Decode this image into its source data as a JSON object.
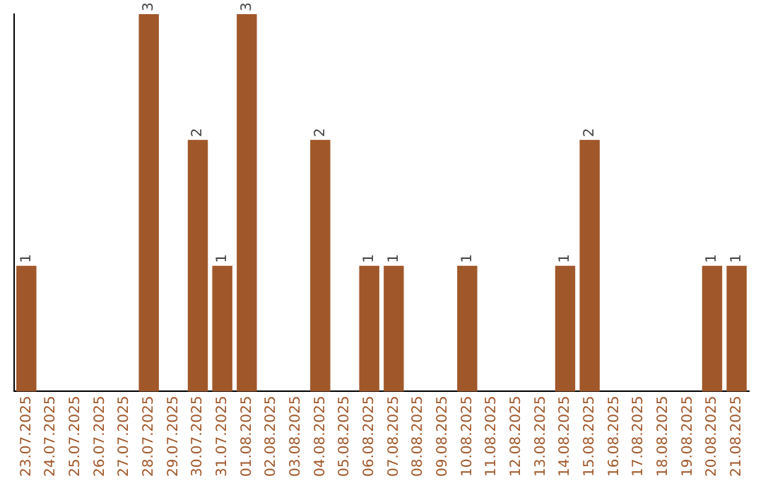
{
  "chart_data": {
    "type": "bar",
    "categories": [
      "23.07.2025",
      "24.07.2025",
      "25.07.2025",
      "26.07.2025",
      "27.07.2025",
      "28.07.2025",
      "29.07.2025",
      "30.07.2025",
      "31.07.2025",
      "01.08.2025",
      "02.08.2025",
      "03.08.2025",
      "04.08.2025",
      "05.08.2025",
      "06.08.2025",
      "07.08.2025",
      "08.08.2025",
      "09.08.2025",
      "10.08.2025",
      "11.08.2025",
      "12.08.2025",
      "13.08.2025",
      "14.08.2025",
      "15.08.2025",
      "16.08.2025",
      "17.08.2025",
      "18.08.2025",
      "19.08.2025",
      "20.08.2025",
      "21.08.2025"
    ],
    "values": [
      1,
      0,
      0,
      0,
      0,
      3,
      0,
      2,
      1,
      3,
      0,
      0,
      2,
      0,
      1,
      1,
      0,
      0,
      1,
      0,
      0,
      0,
      1,
      2,
      0,
      0,
      0,
      0,
      1,
      1
    ],
    "value_labels": [
      "1",
      null,
      null,
      null,
      null,
      "3",
      null,
      "2",
      "1",
      "3",
      null,
      null,
      "2",
      null,
      "1",
      "1",
      null,
      null,
      "1",
      null,
      null,
      null,
      "1",
      "2",
      null,
      null,
      null,
      null,
      "1",
      "1"
    ],
    "color": "#a0572a",
    "ylim": [
      0,
      3
    ],
    "tick_labels": "x",
    "grid": false,
    "legend": false
  }
}
